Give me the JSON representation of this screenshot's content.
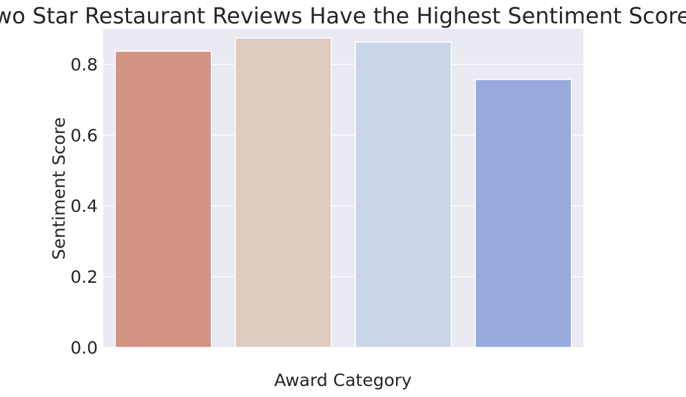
{
  "chart_data": {
    "type": "bar",
    "title": "Two Star Restaurant Reviews Have the Highest Sentiment Scores",
    "xlabel": "Award Category",
    "ylabel": "Sentiment Score",
    "categories": [
      "",
      "",
      "",
      ""
    ],
    "values": [
      0.837,
      0.874,
      0.863,
      0.757
    ],
    "colors": [
      "#d39483",
      "#decbc1",
      "#cad6e8",
      "#97aadf"
    ],
    "ylim": [
      0,
      0.9
    ],
    "yticks": [
      "0.0",
      "0.2",
      "0.4",
      "0.6",
      "0.8"
    ],
    "grid": true,
    "background": "#eaeaf2",
    "grid_color": "#ffffff"
  }
}
